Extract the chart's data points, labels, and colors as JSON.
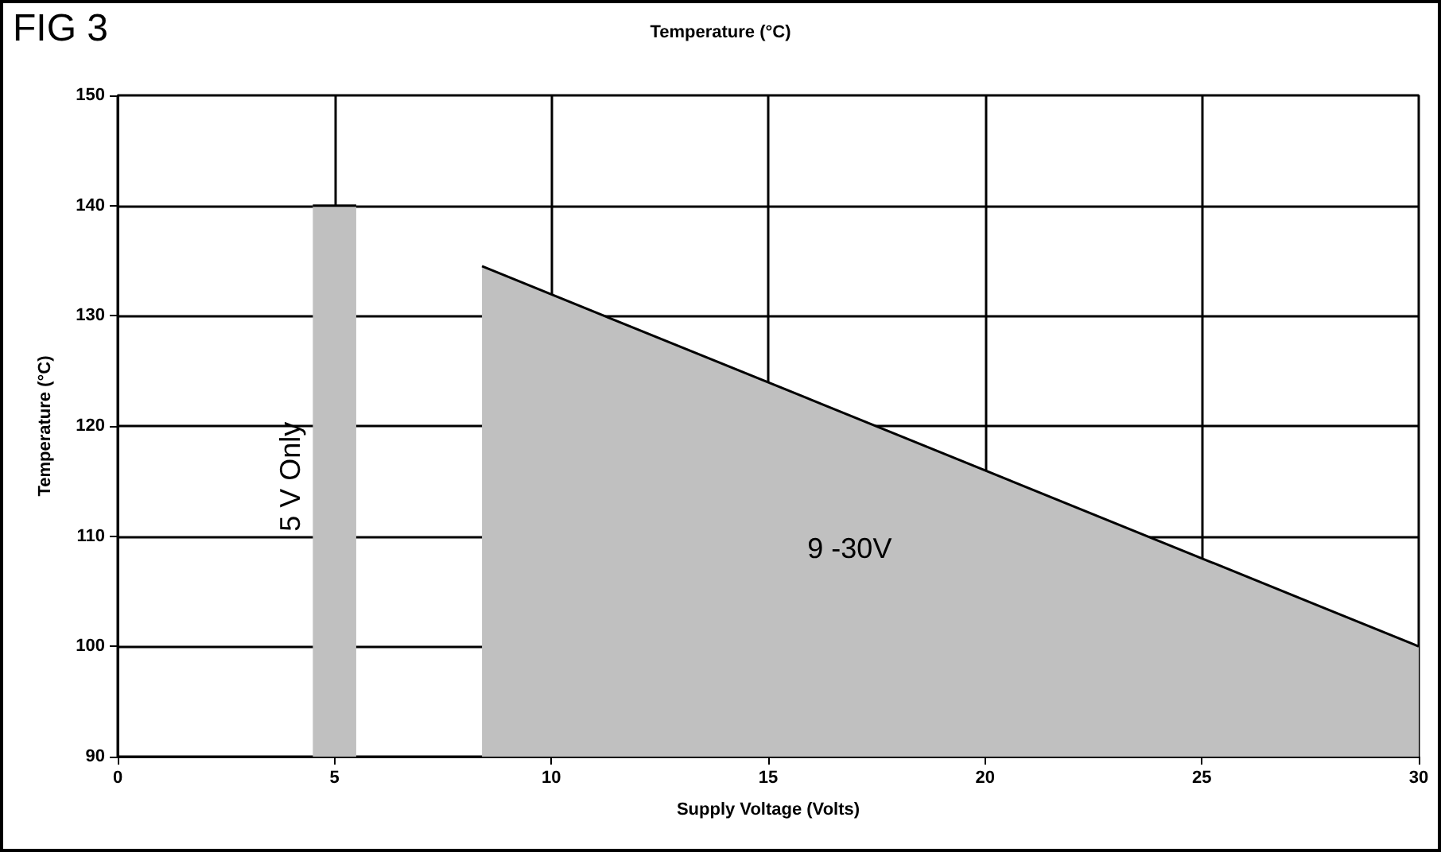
{
  "chart_data": {
    "type": "area",
    "title": "Temperature (°C)",
    "xlabel": "Supply Voltage (Volts)",
    "ylabel": "Temperature (°C)",
    "annotations": [
      "FIG 3",
      "5 V Only",
      "9 -30V"
    ],
    "series": [
      {
        "color": "#c0c0c0",
        "x": [
          4.5,
          5.5
        ],
        "values": [
          140,
          140
        ]
      },
      {
        "color": "#c0c0c0",
        "x": [
          8.4,
          30
        ],
        "values": [
          134.5,
          100
        ]
      }
    ],
    "xlim": [
      0,
      30
    ],
    "xticks": [
      0,
      5,
      10,
      15,
      20,
      25,
      30
    ],
    "ylim": [
      90,
      150
    ],
    "yticks": [
      90,
      100,
      110,
      120,
      130,
      140,
      150
    ],
    "grid": true,
    "marker": "none",
    "line_style": "solid"
  }
}
